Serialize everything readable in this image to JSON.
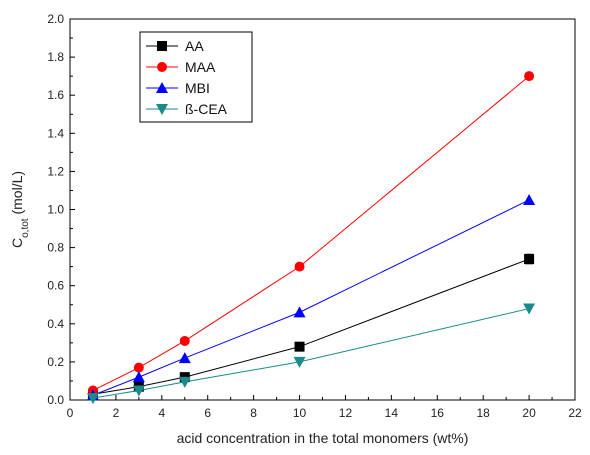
{
  "chart_data": {
    "type": "line",
    "xlabel": "acid concentration in the total monomers (wt%)",
    "ylabel_main": "C",
    "ylabel_sub": "o,tot",
    "ylabel_unit": " (mol/L)",
    "xlim": [
      0,
      22
    ],
    "ylim": [
      0,
      2.0
    ],
    "x_ticks": [
      "0",
      "2",
      "4",
      "6",
      "8",
      "10",
      "12",
      "14",
      "16",
      "18",
      "20",
      "22"
    ],
    "y_ticks": [
      "0.0",
      "0.2",
      "0.4",
      "0.6",
      "0.8",
      "1.0",
      "1.2",
      "1.4",
      "1.6",
      "1.8",
      "2.0"
    ],
    "x_tick_values": [
      0,
      2,
      4,
      6,
      8,
      10,
      12,
      14,
      16,
      18,
      20,
      22
    ],
    "y_tick_values": [
      0,
      0.2,
      0.4,
      0.6,
      0.8,
      1.0,
      1.2,
      1.4,
      1.6,
      1.8,
      2.0
    ],
    "grid": false,
    "legend_position": "top-left",
    "x": [
      1,
      3,
      5,
      10,
      20
    ],
    "series": [
      {
        "name": "AA",
        "values": [
          0.03,
          0.07,
          0.12,
          0.28,
          0.74
        ],
        "color": "#000000",
        "marker": "square",
        "error": [
          0,
          0,
          0,
          0,
          0.025
        ]
      },
      {
        "name": "MAA",
        "values": [
          0.05,
          0.17,
          0.31,
          0.7,
          1.7
        ],
        "color": "#ff0000",
        "marker": "circle",
        "error": [
          0,
          0,
          0,
          0,
          0
        ]
      },
      {
        "name": "MBI",
        "values": [
          0.025,
          0.12,
          0.22,
          0.46,
          1.05
        ],
        "color": "#0000ff",
        "marker": "triangle-up",
        "error": [
          0,
          0,
          0,
          0,
          0
        ]
      },
      {
        "name": "ß-CEA",
        "values": [
          0.01,
          0.05,
          0.095,
          0.2,
          0.48
        ],
        "color": "#1a8a8a",
        "marker": "triangle-down",
        "error": [
          0,
          0,
          0,
          0,
          0
        ]
      }
    ]
  }
}
